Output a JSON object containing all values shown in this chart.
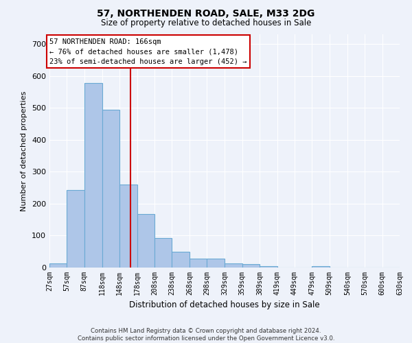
{
  "title": "57, NORTHENDEN ROAD, SALE, M33 2DG",
  "subtitle": "Size of property relative to detached houses in Sale",
  "xlabel": "Distribution of detached houses by size in Sale",
  "ylabel": "Number of detached properties",
  "bar_color": "#aec6e8",
  "bar_edge_color": "#6aaad4",
  "background_color": "#eef2fa",
  "grid_color": "#ffffff",
  "vline_x": 166,
  "vline_color": "#cc0000",
  "annotation_text": "57 NORTHENDEN ROAD: 166sqm\n← 76% of detached houses are smaller (1,478)\n23% of semi-detached houses are larger (452) →",
  "annotation_box_edgecolor": "#cc0000",
  "footer_text": "Contains HM Land Registry data © Crown copyright and database right 2024.\nContains public sector information licensed under the Open Government Licence v3.0.",
  "bin_edges": [
    27,
    57,
    87,
    118,
    148,
    178,
    208,
    238,
    268,
    298,
    329,
    359,
    389,
    419,
    449,
    479,
    509,
    540,
    570,
    600,
    630
  ],
  "bar_heights": [
    12,
    243,
    577,
    494,
    260,
    168,
    92,
    50,
    27,
    27,
    13,
    10,
    5,
    0,
    0,
    4,
    0,
    0,
    0,
    0
  ],
  "ylim": [
    0,
    730
  ],
  "yticks": [
    0,
    100,
    200,
    300,
    400,
    500,
    600,
    700
  ],
  "figsize": [
    6.0,
    5.0
  ],
  "dpi": 100
}
